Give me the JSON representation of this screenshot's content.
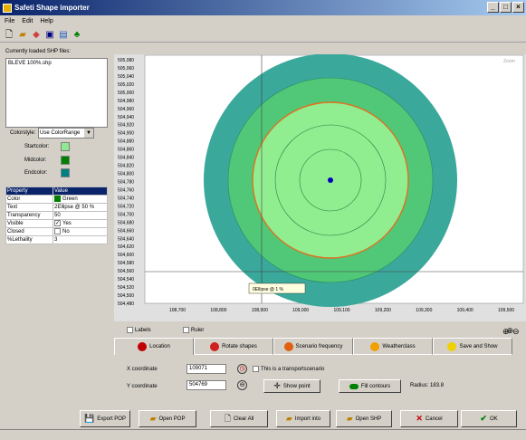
{
  "window": {
    "title": "Safeti Shape importer",
    "controls": [
      "_",
      "□",
      "×"
    ]
  },
  "menu": {
    "items": [
      "File",
      "Edit",
      "Help"
    ]
  },
  "toolbar": {
    "icons": [
      "new-icon",
      "open-icon",
      "shapes-icon",
      "save-icon",
      "chart-icon",
      "tree-icon"
    ]
  },
  "files": {
    "label": "Currently loaded SHP files:",
    "items": [
      "BLEVE 100%.shp"
    ]
  },
  "colorstyle": {
    "label": "Colorstyle:",
    "value": "Use ColorRange",
    "startcolor_label": "Startcolor:",
    "startcolor": "#90e890",
    "midcolor_label": "Midcolor:",
    "midcolor": "#008000",
    "endcolor_label": "Endcolor:",
    "endcolor": "#008080"
  },
  "properties": {
    "headers": [
      "Property",
      "Value"
    ],
    "color": {
      "name": "Color",
      "value": "Green"
    },
    "text": {
      "name": "Text",
      "value": "2Ellipse @ 50 %"
    },
    "transparency": {
      "name": "Transparency",
      "value": "50"
    },
    "visible": {
      "name": "Visible",
      "value": "Yes"
    },
    "closed": {
      "name": "Closed",
      "value": "No"
    },
    "lethality": {
      "name": "%Lethality",
      "value": "3"
    }
  },
  "plot": {
    "corner_label": "Zoom",
    "y_ticks": [
      "505,080",
      "505,060",
      "505,040",
      "505,020",
      "505,000",
      "504,980",
      "504,960",
      "504,940",
      "504,920",
      "504,900",
      "504,880",
      "504,860",
      "504,840",
      "504,820",
      "504,800",
      "504,780",
      "504,760",
      "504,740",
      "504,720",
      "504,700",
      "504,680",
      "504,660",
      "504,640",
      "504,620",
      "504,600",
      "504,580",
      "504,560",
      "504,540",
      "504,520",
      "504,500",
      "504,480"
    ],
    "x_ticks": [
      "108,700",
      "108,800",
      "108,900",
      "109,000",
      "109,100",
      "109,200",
      "109,300",
      "109,400",
      "109,500"
    ],
    "tooltip": "0Ellipse @ 1 %",
    "colors": {
      "outer": "#3aa89a",
      "band2": "#50c878",
      "band3": "#90ee90",
      "orange_ring": "#e07020",
      "center": "#0000c0",
      "bg": "#e0e0e0"
    }
  },
  "options": {
    "labels": "Labels",
    "ruler": "Ruler"
  },
  "tabs": [
    {
      "label": "Location",
      "color": "#c00000"
    },
    {
      "label": "Rotate shapes",
      "color": "#d02020"
    },
    {
      "label": "Scenario frequency",
      "color": "#e06010"
    },
    {
      "label": "Weatherclass",
      "color": "#f0a000"
    },
    {
      "label": "Save and Show",
      "color": "#f0d000"
    }
  ],
  "location": {
    "x_label": "X coordinate",
    "x_value": "109071",
    "y_label": "Y coordinate",
    "y_value": "504769",
    "transport_label": "This is a transportscenario",
    "show_point": "Show point",
    "fill_contours": "Fill contours",
    "radius_label": "Radius:",
    "radius_value": "183.8"
  },
  "buttons": {
    "export_pop": "Export POP",
    "open_pop": "Open POP",
    "clear_all": "Clear All",
    "import_into": "Import into",
    "open_shp": "Open SHP",
    "cancel": "Cancel",
    "ok": "OK"
  }
}
